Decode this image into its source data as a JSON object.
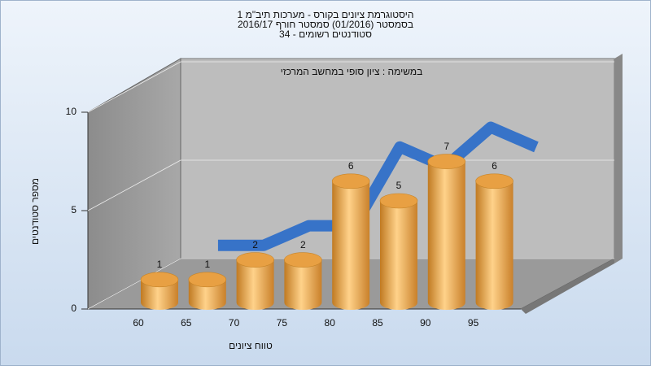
{
  "chart_data": {
    "type": "bar",
    "title": [
      "היסטוגרמת ציונים בקורס - מערכות תיב\"מ 1",
      "בסמסטר  (01/2016)  סמסטר חורף 2016/17",
      "סטודנטים רשומים - 34"
    ],
    "subtitle": "במשימה : ציון סופי במחשב המרכזי",
    "x_label": "טווח ציונים",
    "y_label": "מספר סטודנטים",
    "categories": [
      "60",
      "65",
      "70",
      "75",
      "80",
      "85",
      "90",
      "95"
    ],
    "values": [
      1,
      1,
      2,
      2,
      6,
      5,
      7,
      6
    ],
    "color": "#e8a043",
    "trend_color": "#2f6fc8",
    "ylim": [
      0,
      10
    ],
    "yticks": [
      0,
      5,
      10
    ],
    "grid": true
  }
}
